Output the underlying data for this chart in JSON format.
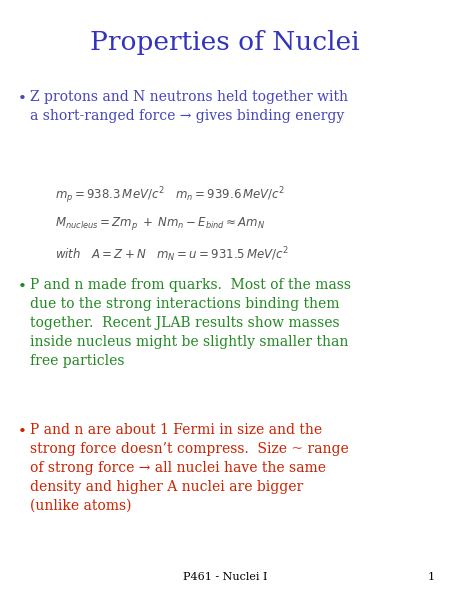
{
  "title": "Properties of Nuclei",
  "title_color": "#3333bb",
  "title_fontsize": 19,
  "background_color": "#ffffff",
  "bullet_color_purple": "#4444bb",
  "bullet_color_green": "#228822",
  "bullet_color_red": "#cc2200",
  "footer_text": "P461 - Nuclei I",
  "footer_page": "1",
  "bullet1_text": "Z protons and N neutrons held together with\na short-ranged force → gives binding energy",
  "eq_line1": "$m_p = 938.3\\,MeV / c^2 \\quad m_n = 939.6\\,MeV / c^2$",
  "eq_line2": "$M_{nucleus} = Zm_p \\;+\\; Nm_n - E_{bind} \\approx Am_N$",
  "eq_line3": "$with \\quad A = Z+N \\quad m_N = u = 931.5\\,MeV / c^2$",
  "bullet2_text": "P and n made from quarks.  Most of the mass\ndue to the strong interactions binding them\ntogether.  Recent JLAB results show masses\ninside nucleus might be slightly smaller than\nfree particles",
  "bullet3_text": "P and n are about 1 Fermi in size and the\nstrong force doesn’t compress.  Size ~ range\nof strong force → all nuclei have the same\ndensity and higher A nuclei are bigger\n(unlike atoms)"
}
